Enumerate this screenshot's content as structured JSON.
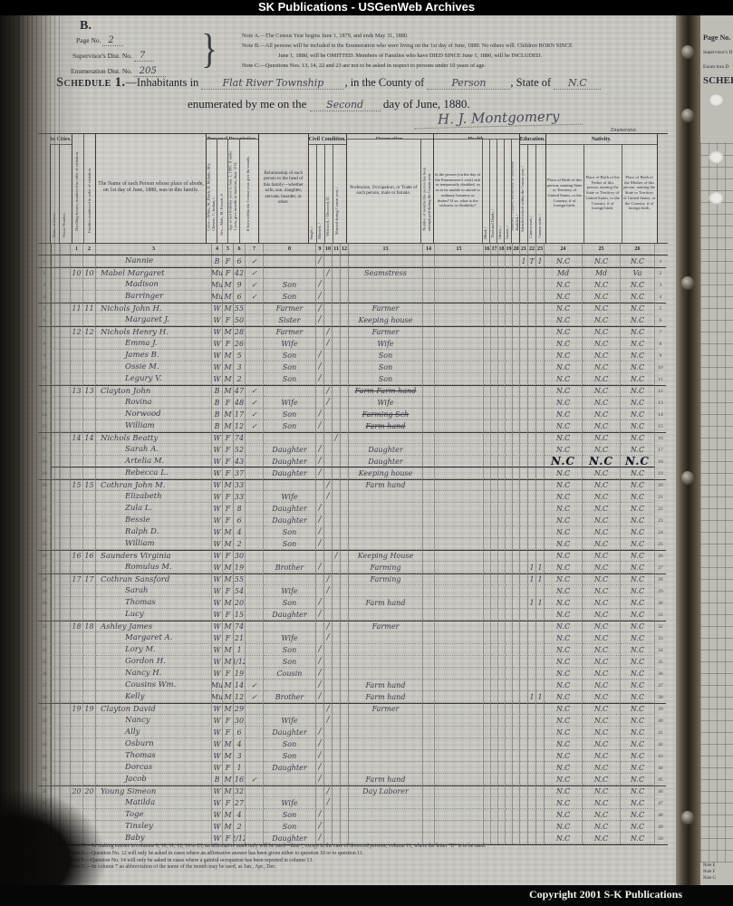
{
  "banner": {
    "top": "SK Publications - USGenWeb Archives",
    "bottom": "Copyright 2001 S-K Publications"
  },
  "page": {
    "corner_letter": "B.",
    "fields": [
      {
        "label": "Page No.",
        "value": "2"
      },
      {
        "label": "Supervisor's Dist. No.",
        "value": "7"
      },
      {
        "label": "Enumeration Dist. No.",
        "value": "205"
      }
    ],
    "notes_top": [
      "Note A.—The Census Year begins June 1, 1879, and ends May 31, 1880.",
      "Note B.—All persons will be included in the Enumeration who were living on the 1st day of June, 1880.  No others will.  Children BORN SINCE",
      "June 1, 1880, will be OMITTED.  Members of Families who have DIED SINCE June 1, 1880, will be INCLUDED.",
      "Note C.—Questions Nos. 13, 14, 22 and 23 are not to be asked in respect to persons under 10 years of age."
    ],
    "schedule": {
      "prefix": "Schedule 1.",
      "inhabitants": "—Inhabitants in",
      "place": "Flat River Township",
      "county_label": ", in the County of",
      "county": "Person",
      "state_label": ", State of",
      "state": "N.C",
      "line2_prefix": "enumerated by me on the",
      "date_word": "Second",
      "line2_suffix": "day of June, 1880.",
      "signature": "H. J. Montgomery",
      "enumerator_label": "Enumerator."
    },
    "notes_bottom": [
      "Note D.—In making entries in columns 9, 10, 11, 12, 16 to 23, an affirmative mark only will be used—thus /, except in the case of divorced persons, column 11, where the letter \"D\" is to be used.",
      "Note E.—Question No. 12 will only be asked in cases where an affirmative answer has been given either to question 10 or to question 11.",
      "Note F.—Question No. 14 will only be asked in cases where a gainful occupation has been reported in column 13.",
      "Note G.—In column 7 an abbreviation of the name of the month may be used, as Jan., Apr., Dec."
    ]
  },
  "table": {
    "groups": {
      "in_cities": "In Cities.",
      "pd": "Personal Description.",
      "cc": "Civil Condition.",
      "occ": "Occupation.",
      "health": "Health.",
      "edu": "Education.",
      "nat": "Nativity."
    },
    "cols": {
      "street": "Name of Street.",
      "house": "House Number.",
      "dw": "Dwelling-houses, numbered in order of visitation.",
      "fam": "Families numbered in order of visitation.",
      "name": "The Name of each Person whose place of abode, on 1st day of June, 1880, was in this family.",
      "color": "Color—White, W; Black, B; Mulatto, Mu; Chinese, C; Indian, I.",
      "sex": "Sex—Male, M; Female, F.",
      "age": "Age at last birthday prior to June 1, 1880. If under 1 year, give months in fractions, thus: 3/12.",
      "mon": "If born within the Census year, give the month.",
      "rel": "Relationship of each person to the head of this family—whether wife, son, daughter, servant, boarder, or other.",
      "single": "Single, /",
      "married": "Married, /",
      "widowed": "Widowed, /  Divorced, D.",
      "marcen": "Married during Census year, /",
      "occ": "Profession, Occupation, or Trade of each person, male or female.",
      "unemp": "Number of months this person has been unemployed during the Census year.",
      "sick": "Is the person [on the day of the Enumerator's visit] sick or temporarily disabled, so as to be unable to attend to ordinary business or duties?  If so, what is the sickness or disability?",
      "blind": "Blind, /",
      "deaf": "Deaf and Dumb, /",
      "idiotic": "Idiotic, /",
      "insane": "Insane, /",
      "maimed": "Maimed, Crippled, Bedridden, or otherwise disabled, /",
      "school": "Attended school within the Census year, /",
      "read": "Cannot read, /",
      "write": "Cannot write, /",
      "b1": "Place of Birth of this person, naming State or Territory of United States, or the Country, if of foreign birth.",
      "b2": "Place of Birth of the Father of this person, naming the State or Territory of United States, or the Country, if of foreign birth.",
      "b3": "Place of Birth of the Mother of this person, naming the State or Territory of United States, or the Country, if of foreign birth."
    },
    "column_numbers": [
      "1",
      "2",
      "3",
      "4",
      "5",
      "6",
      "7",
      "8",
      "9",
      "10",
      "11",
      "12",
      "13",
      "14",
      "15",
      "16",
      "17",
      "18",
      "19",
      "20",
      "21",
      "22",
      "23",
      "24",
      "25",
      "26"
    ],
    "rows": [
      {
        "name": "Nannie",
        "c": "B",
        "s": "F",
        "a": "6",
        "mk": "✓",
        "cc": "s",
        "e": [
          "1",
          "T",
          "1"
        ],
        "b": "N.C"
      },
      {
        "dw": "10",
        "fam": "10",
        "name": "Mabel Margaret",
        "c": "Mu",
        "s": "F",
        "a": "42",
        "mk": "✓",
        "cc": "m",
        "occ": "Seamstress",
        "b": [
          "Md",
          "Md",
          "Va"
        ]
      },
      {
        "name": "Madison",
        "c": "Mu",
        "s": "M",
        "a": "9",
        "mk": "✓",
        "rel": "Son",
        "cc": "s",
        "b": "N.C"
      },
      {
        "name": "Barringer",
        "c": "Mu",
        "s": "M",
        "a": "6",
        "mk": "✓",
        "rel": "Son",
        "cc": "s",
        "b": "N.C"
      },
      {
        "dw": "11",
        "fam": "11",
        "name": "Nichols John H.",
        "c": "W",
        "s": "M",
        "a": "55",
        "rel": "Farmer",
        "cc": "s",
        "occ": "Farmer",
        "b": "N.C"
      },
      {
        "name": "Margaret J.",
        "c": "W",
        "s": "F",
        "a": "50",
        "rel": "Sister",
        "cc": "s",
        "occ": "Keeping house",
        "b": "N.C"
      },
      {
        "dw": "12",
        "fam": "12",
        "name": "Nichols Henry H.",
        "c": "W",
        "s": "M",
        "a": "28",
        "rel": "Farmer",
        "cc": "m",
        "occ": "Farmer",
        "b": "N.C"
      },
      {
        "name": "Emma J.",
        "c": "W",
        "s": "F",
        "a": "26",
        "rel": "Wife",
        "cc": "m",
        "occ": "Wife",
        "b": "N.C"
      },
      {
        "name": "James B.",
        "c": "W",
        "s": "M",
        "a": "5",
        "rel": "Son",
        "cc": "s",
        "occ": "Son",
        "b": "N.C"
      },
      {
        "name": "Ossie M.",
        "c": "W",
        "s": "M",
        "a": "3",
        "rel": "Son",
        "cc": "s",
        "occ": "Son",
        "b": "N.C"
      },
      {
        "name": "Legury V.",
        "c": "W",
        "s": "M",
        "a": "2",
        "rel": "Son",
        "cc": "s",
        "occ": "Son",
        "b": "N.C"
      },
      {
        "dw": "13",
        "fam": "13",
        "name": "Clayton John",
        "c": "B",
        "s": "M",
        "a": "47",
        "mk": "✓",
        "cc": "m",
        "occ": "Farm  Farm hand",
        "strike": true,
        "b": "N.C"
      },
      {
        "name": "Rovina",
        "c": "B",
        "s": "F",
        "a": "48",
        "mk": "✓",
        "rel": "Wife",
        "cc": "m",
        "occ": "Wife",
        "b": "N.C"
      },
      {
        "name": "Norwood",
        "c": "B",
        "s": "M",
        "a": "17",
        "mk": "✓",
        "rel": "Son",
        "cc": "s",
        "occ": "Farming Sch",
        "strike": true,
        "b": "N.C"
      },
      {
        "name": "William",
        "c": "B",
        "s": "M",
        "a": "12",
        "mk": "✓",
        "rel": "Son",
        "cc": "s",
        "occ": "Farm hand",
        "strike": true,
        "b": "N.C"
      },
      {
        "dw": "14",
        "fam": "14",
        "name": "Nichols Beatty",
        "c": "W",
        "s": "F",
        "a": "74",
        "cc": "w",
        "b": "N.C"
      },
      {
        "name": "Sarah A.",
        "c": "W",
        "s": "F",
        "a": "52",
        "rel": "Daughter",
        "cc": "s",
        "occ": "Daughter",
        "b": "N.C"
      },
      {
        "name": "Artelia M.",
        "c": "W",
        "s": "F",
        "a": "43",
        "rel": "Daughter",
        "cc": "s",
        "occ": "Daughter",
        "b": [
          "N.C",
          "N.C",
          "N.C"
        ],
        "big": true
      },
      {
        "name": "Rebecca L.",
        "c": "W",
        "s": "F",
        "a": "37",
        "rel": "Daughter",
        "cc": "s",
        "occ": "Keeping house",
        "b": "N.C"
      },
      {
        "dw": "15",
        "fam": "15",
        "name": "Cothran John M.",
        "c": "W",
        "s": "M",
        "a": "33",
        "cc": "m",
        "occ": "Farm hand",
        "b": "N.C"
      },
      {
        "name": "Elizabeth",
        "c": "W",
        "s": "F",
        "a": "33",
        "rel": "Wife",
        "cc": "m",
        "b": "N.C"
      },
      {
        "name": "Zula L.",
        "c": "W",
        "s": "F",
        "a": "8",
        "rel": "Daughter",
        "cc": "s",
        "b": "N.C"
      },
      {
        "name": "Bessie",
        "c": "W",
        "s": "F",
        "a": "6",
        "rel": "Daughter",
        "cc": "s",
        "b": "N.C"
      },
      {
        "name": "Ralph D.",
        "c": "W",
        "s": "M",
        "a": "4",
        "rel": "Son",
        "cc": "s",
        "b": "N.C"
      },
      {
        "name": "William",
        "c": "W",
        "s": "M",
        "a": "2",
        "rel": "Son",
        "cc": "s",
        "b": "N.C"
      },
      {
        "dw": "16",
        "fam": "16",
        "name": "Saunders Virginia",
        "c": "W",
        "s": "F",
        "a": "30",
        "cc": "w",
        "occ": "Keeping House",
        "b": "N.C"
      },
      {
        "name": "Romulus M.",
        "c": "W",
        "s": "M",
        "a": "19",
        "rel": "Brother",
        "cc": "s",
        "occ": "Farming",
        "e": [
          "",
          "1",
          "1"
        ],
        "b": "N.C"
      },
      {
        "dw": "17",
        "fam": "17",
        "name": "Cothran Sansford",
        "c": "W",
        "s": "M",
        "a": "55",
        "cc": "m",
        "occ": "Farming",
        "e": [
          "",
          "1",
          "1"
        ],
        "b": "N.C"
      },
      {
        "name": "Sarah",
        "c": "W",
        "s": "F",
        "a": "54",
        "rel": "Wife",
        "cc": "m",
        "b": "N.C"
      },
      {
        "name": "Thomas",
        "c": "W",
        "s": "M",
        "a": "20",
        "rel": "Son",
        "cc": "s",
        "occ": "Farm hand",
        "e": [
          "",
          "1",
          "1"
        ],
        "b": "N.C"
      },
      {
        "name": "Lucy",
        "c": "W",
        "s": "F",
        "a": "15",
        "rel": "Daughter",
        "cc": "s",
        "b": "N.C"
      },
      {
        "dw": "18",
        "fam": "18",
        "name": "Ashley James",
        "c": "W",
        "s": "M",
        "a": "74",
        "cc": "m",
        "occ": "Farmer",
        "b": "N.C"
      },
      {
        "name": "Margaret A.",
        "c": "W",
        "s": "F",
        "a": "21",
        "rel": "Wife",
        "cc": "m",
        "b": "N.C"
      },
      {
        "name": "Lory M.",
        "c": "W",
        "s": "M",
        "a": "1",
        "rel": "Son",
        "cc": "s",
        "b": "N.C"
      },
      {
        "name": "Gordon H.",
        "c": "W",
        "s": "M",
        "a": "3/12",
        "rel": "Son",
        "cc": "s",
        "b": "N.C"
      },
      {
        "name": "Nancy H.",
        "c": "W",
        "s": "F",
        "a": "19",
        "rel": "Cousin",
        "cc": "s",
        "b": "N.C"
      },
      {
        "name": "Cousins Wm.",
        "c": "Mu",
        "s": "M",
        "a": "14",
        "mk": "✓",
        "cc": "s",
        "occ": "Farm hand",
        "b": "N.C"
      },
      {
        "name": "Kelly",
        "c": "Mu",
        "s": "M",
        "a": "12",
        "mk": "✓",
        "rel": "Brother",
        "cc": "s",
        "occ": "Farm hand",
        "e": [
          "",
          "1",
          "1"
        ],
        "b": "N.C"
      },
      {
        "dw": "19",
        "fam": "19",
        "name": "Clayton David",
        "c": "W",
        "s": "M",
        "a": "29",
        "cc": "m",
        "occ": "Farmer",
        "b": "N.C"
      },
      {
        "name": "Nancy",
        "c": "W",
        "s": "F",
        "a": "30",
        "rel": "Wife",
        "cc": "m",
        "b": "N.C"
      },
      {
        "name": "Ally",
        "c": "W",
        "s": "F",
        "a": "6",
        "rel": "Daughter",
        "cc": "s",
        "b": "N.C"
      },
      {
        "name": "Osburn",
        "c": "W",
        "s": "M",
        "a": "4",
        "rel": "Son",
        "cc": "s",
        "b": "N.C"
      },
      {
        "name": "Thomas",
        "c": "W",
        "s": "M",
        "a": "3",
        "rel": "Son",
        "cc": "s",
        "b": "N.C"
      },
      {
        "name": "Dorcas",
        "c": "W",
        "s": "F",
        "a": "1",
        "rel": "Daughter",
        "cc": "s",
        "b": "N.C"
      },
      {
        "name": "Jacob",
        "c": "B",
        "s": "M",
        "a": "16",
        "mk": "✓",
        "cc": "s",
        "occ": "Farm hand",
        "b": "N.C"
      },
      {
        "dw": "20",
        "fam": "20",
        "name": "Young Simeon",
        "c": "W",
        "s": "M",
        "a": "32",
        "cc": "m",
        "occ": "Day Laborer",
        "b": "N.C"
      },
      {
        "name": "Matilda",
        "c": "W",
        "s": "F",
        "a": "27",
        "rel": "Wife",
        "cc": "m",
        "b": "N.C"
      },
      {
        "name": "Toge",
        "c": "W",
        "s": "M",
        "a": "4",
        "rel": "Son",
        "cc": "s",
        "b": "N.C"
      },
      {
        "name": "Tinsley",
        "c": "W",
        "s": "M",
        "a": "2",
        "rel": "Son",
        "cc": "s",
        "b": "N.C"
      },
      {
        "name": "Baby",
        "c": "W",
        "s": "F",
        "a": "2/12",
        "rel": "Daughter",
        "cc": "s",
        "b": "N.C"
      }
    ]
  },
  "side_page": {
    "page_no": "Page No.",
    "supervisor": "Supervisor's D",
    "enumeration": "Enum  tion D",
    "schedule": "SCHEDU",
    "notes": [
      "Note E",
      "Note F",
      "Note G"
    ]
  }
}
